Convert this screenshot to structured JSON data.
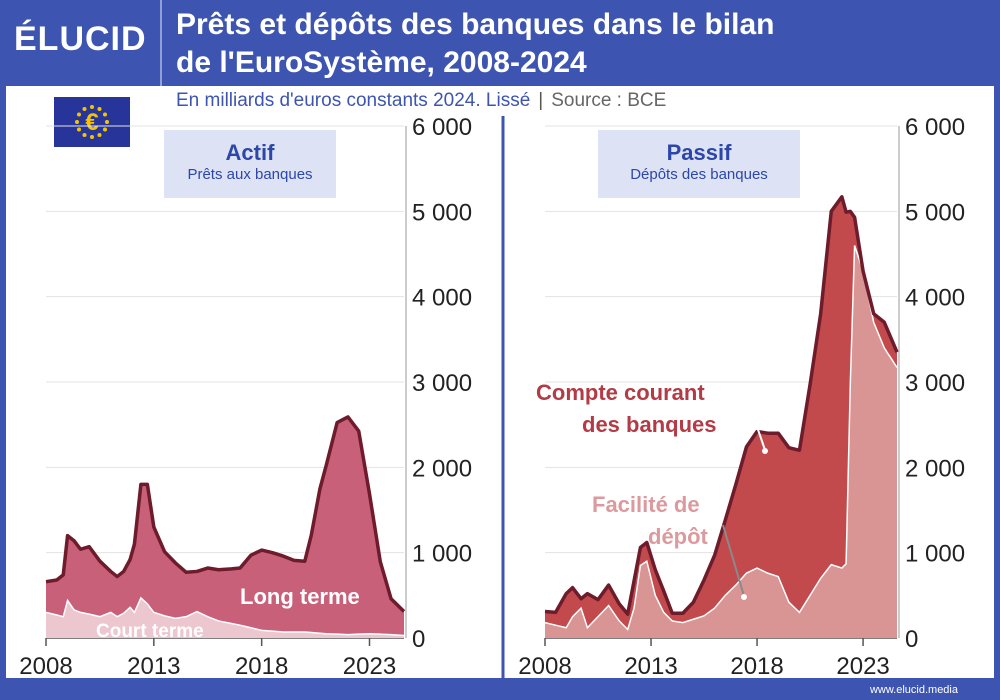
{
  "header": {
    "logo": "ÉLUCID",
    "title_line1": "Prêts et dépôts des banques dans le bilan",
    "title_line2": "de l'EuroSystème, 2008-2024"
  },
  "subtitle": {
    "text": "En milliards d'euros constants 2024. Lissé",
    "separator": "|",
    "source": "Source : BCE"
  },
  "footer": {
    "url": "www.elucid.media"
  },
  "colors": {
    "brand": "#3d55b0",
    "long_terme": "#c8607a",
    "court_terme": "#ecc7cf",
    "compte_courant": "#c24a4c",
    "facilite_depot": "#d99494",
    "outline": "#6e1c2c"
  },
  "chart_data": [
    {
      "type": "area",
      "title": "Actif",
      "subtitle": "Prêts aux banques",
      "x_ticks": [
        "2008",
        "2013",
        "2018",
        "2023"
      ],
      "y_ticks": [
        "0",
        "1 000",
        "2 000",
        "3 000",
        "4 000",
        "5 000",
        "6 000"
      ],
      "xlim": [
        2008,
        2024.6
      ],
      "ylim": [
        0,
        6000
      ],
      "stacked": true,
      "series": [
        {
          "name": "Court terme",
          "x": [
            2008.0,
            2008.5,
            2008.8,
            2009.0,
            2009.3,
            2009.6,
            2010.0,
            2010.5,
            2011.0,
            2011.3,
            2011.6,
            2011.9,
            2012.1,
            2012.4,
            2012.7,
            2013.0,
            2013.5,
            2014.0,
            2014.5,
            2015.0,
            2015.5,
            2016.0,
            2017.0,
            2018.0,
            2019.0,
            2020.0,
            2021.0,
            2022.0,
            2023.0,
            2024.0,
            2024.6
          ],
          "values": [
            300,
            270,
            250,
            440,
            330,
            300,
            280,
            250,
            300,
            250,
            290,
            360,
            300,
            470,
            400,
            300,
            260,
            230,
            250,
            310,
            250,
            200,
            150,
            90,
            70,
            70,
            50,
            40,
            50,
            40,
            30
          ]
        },
        {
          "name": "Long terme",
          "x": [
            2008.0,
            2008.5,
            2008.8,
            2009.0,
            2009.3,
            2009.6,
            2010.0,
            2010.5,
            2011.0,
            2011.3,
            2011.6,
            2011.9,
            2012.1,
            2012.4,
            2012.7,
            2013.0,
            2013.5,
            2014.0,
            2014.5,
            2015.0,
            2015.5,
            2016.0,
            2016.6,
            2017.0,
            2017.5,
            2018.0,
            2018.5,
            2019.0,
            2019.5,
            2020.0,
            2020.3,
            2020.7,
            2021.0,
            2021.5,
            2022.0,
            2022.5,
            2023.0,
            2023.5,
            2024.0,
            2024.6
          ],
          "values": [
            360,
            410,
            490,
            760,
            810,
            740,
            790,
            650,
            480,
            470,
            490,
            560,
            800,
            1330,
            1400,
            1000,
            750,
            650,
            520,
            470,
            570,
            600,
            640,
            670,
            850,
            940,
            920,
            890,
            840,
            830,
            1140,
            1690,
            1980,
            2480,
            2550,
            2380,
            1640,
            850,
            420,
            280
          ]
        }
      ],
      "annotations": [
        "Long terme",
        "Court terme"
      ]
    },
    {
      "type": "area",
      "title": "Passif",
      "subtitle": "Dépôts des banques",
      "x_ticks": [
        "2008",
        "2013",
        "2018",
        "2023"
      ],
      "y_ticks": [
        "0",
        "1 000",
        "2 000",
        "3 000",
        "4 000",
        "5 000",
        "6 000"
      ],
      "xlim": [
        2008,
        2024.6
      ],
      "ylim": [
        0,
        6000
      ],
      "stacked": true,
      "series": [
        {
          "name": "Facilité de dépôt",
          "x": [
            2008.0,
            2008.5,
            2009.0,
            2009.3,
            2009.7,
            2010.0,
            2010.5,
            2011.0,
            2011.5,
            2011.9,
            2012.2,
            2012.5,
            2012.8,
            2013.2,
            2013.6,
            2014.0,
            2014.5,
            2015.0,
            2015.5,
            2016.0,
            2016.5,
            2017.0,
            2017.5,
            2018.0,
            2018.5,
            2019.0,
            2019.5,
            2020.0,
            2020.5,
            2021.0,
            2021.5,
            2022.0,
            2022.2,
            2022.4,
            2022.6,
            2023.0,
            2023.5,
            2024.0,
            2024.6
          ],
          "values": [
            180,
            150,
            120,
            250,
            350,
            120,
            250,
            380,
            200,
            100,
            350,
            850,
            900,
            500,
            300,
            200,
            180,
            220,
            260,
            350,
            500,
            620,
            760,
            820,
            760,
            720,
            420,
            300,
            500,
            700,
            860,
            820,
            870,
            3000,
            4600,
            4300,
            3700,
            3400,
            3170
          ]
        },
        {
          "name": "Compte courant des banques",
          "x": [
            2008.0,
            2008.5,
            2009.0,
            2009.3,
            2009.7,
            2010.0,
            2010.5,
            2011.0,
            2011.5,
            2011.9,
            2012.2,
            2012.5,
            2012.8,
            2013.2,
            2013.6,
            2014.0,
            2014.5,
            2015.0,
            2015.5,
            2016.0,
            2016.5,
            2017.0,
            2017.5,
            2018.0,
            2018.5,
            2019.0,
            2019.5,
            2020.0,
            2020.5,
            2021.0,
            2021.5,
            2022.0,
            2022.2,
            2022.4,
            2022.6,
            2023.0,
            2023.5,
            2024.0,
            2024.6
          ],
          "values": [
            130,
            150,
            400,
            340,
            110,
            400,
            200,
            240,
            200,
            180,
            320,
            210,
            220,
            300,
            250,
            90,
            110,
            200,
            420,
            620,
            880,
            1180,
            1480,
            1600,
            1640,
            1680,
            1810,
            1900,
            2470,
            3100,
            4140,
            4350,
            4120,
            2000,
            330,
            0,
            100,
            300,
            180
          ]
        }
      ],
      "annotations": [
        "Compte courant\ndes banques",
        "Facilité de\ndépôt"
      ]
    }
  ],
  "panels": {
    "left": {
      "title": "Actif",
      "subtitle": "Prêts aux banques",
      "label_long": "Long terme",
      "label_short": "Court terme"
    },
    "right": {
      "title": "Passif",
      "subtitle": "Dépôts des banques",
      "label_cc_1": "Compte courant",
      "label_cc_2": "des banques",
      "label_fd_1": "Facilité de",
      "label_fd_2": "dépôt"
    }
  }
}
